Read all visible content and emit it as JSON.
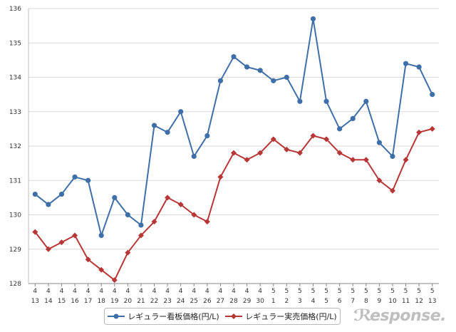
{
  "chart_data": {
    "type": "line",
    "title": "",
    "xlabel": "",
    "ylabel": "",
    "ylim": [
      128,
      136
    ],
    "yticks": [
      128,
      129,
      130,
      131,
      132,
      133,
      134,
      135,
      136
    ],
    "categories": [
      [
        "4",
        "13"
      ],
      [
        "4",
        "14"
      ],
      [
        "4",
        "15"
      ],
      [
        "4",
        "16"
      ],
      [
        "4",
        "17"
      ],
      [
        "4",
        "18"
      ],
      [
        "4",
        "19"
      ],
      [
        "4",
        "20"
      ],
      [
        "4",
        "21"
      ],
      [
        "4",
        "22"
      ],
      [
        "4",
        "23"
      ],
      [
        "4",
        "24"
      ],
      [
        "4",
        "25"
      ],
      [
        "4",
        "26"
      ],
      [
        "4",
        "27"
      ],
      [
        "4",
        "28"
      ],
      [
        "4",
        "29"
      ],
      [
        "4",
        "30"
      ],
      [
        "5",
        "1"
      ],
      [
        "5",
        "2"
      ],
      [
        "5",
        "3"
      ],
      [
        "5",
        "4"
      ],
      [
        "5",
        "5"
      ],
      [
        "5",
        "6"
      ],
      [
        "5",
        "7"
      ],
      [
        "5",
        "8"
      ],
      [
        "5",
        "9"
      ],
      [
        "5",
        "10"
      ],
      [
        "5",
        "11"
      ],
      [
        "5",
        "12"
      ],
      [
        "5",
        "13"
      ]
    ],
    "series": [
      {
        "name": "レギュラー看板価格(円/L)",
        "color": "#3e6fa8",
        "marker": "circle",
        "values": [
          130.6,
          130.3,
          130.6,
          131.1,
          131.0,
          129.4,
          130.5,
          130.0,
          129.7,
          132.6,
          132.4,
          133.0,
          131.7,
          132.3,
          133.9,
          134.6,
          134.3,
          134.2,
          133.9,
          134.0,
          133.3,
          135.7,
          133.3,
          132.5,
          132.8,
          133.3,
          132.1,
          131.7,
          134.4,
          134.3,
          133.5
        ]
      },
      {
        "name": "レギュラー実売価格(円/L)",
        "color": "#b73636",
        "marker": "diamond",
        "values": [
          129.5,
          129.0,
          129.2,
          129.4,
          128.7,
          128.4,
          128.1,
          128.9,
          129.4,
          129.8,
          130.5,
          130.3,
          130.0,
          129.8,
          131.1,
          131.8,
          131.6,
          131.8,
          132.2,
          131.9,
          131.8,
          132.3,
          132.2,
          131.8,
          131.6,
          131.6,
          131.0,
          130.7,
          131.6,
          132.4,
          132.5
        ]
      }
    ],
    "grid": true,
    "legend": "bottom-center"
  },
  "watermark": {
    "text": "esponse.",
    "icon": "response-r-logo-icon"
  }
}
